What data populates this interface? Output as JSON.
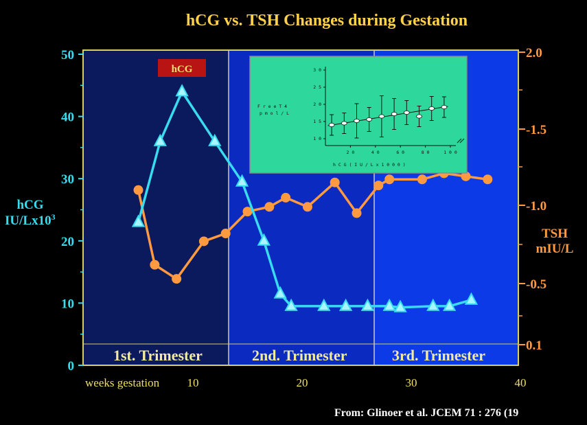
{
  "chart_data": {
    "type": "line",
    "title": "hCG vs. TSH Changes during Gestation",
    "xlabel": "weeks gestation",
    "xlim": [
      0,
      40
    ],
    "x_ticks": [
      "10",
      "20",
      "30",
      "40"
    ],
    "y_left": {
      "label_line1": "hCG",
      "label_line2": "IU/Lx10",
      "label_sup": "3",
      "lim": [
        0,
        50
      ],
      "ticks": [
        "0",
        "10",
        "20",
        "30",
        "40",
        "50"
      ]
    },
    "y_right": {
      "label_line1": "TSH",
      "label_line2": "mIU/L",
      "ticks": [
        "0.1",
        "-0.5",
        "-1.0",
        "-1.5",
        "2.0"
      ]
    },
    "series": [
      {
        "name": "hCG",
        "color": "#38dcf0",
        "marker": "triangle",
        "x": [
          5,
          7,
          9,
          12,
          14.5,
          16.5,
          18,
          19,
          22,
          24,
          26,
          28,
          29,
          32,
          33.5,
          35.5
        ],
        "y": [
          23,
          36,
          44,
          36,
          29.5,
          20,
          11.5,
          9.5,
          9.5,
          9.5,
          9.5,
          9.5,
          9.3,
          9.5,
          9.5,
          10.5
        ]
      },
      {
        "name": "TSH",
        "color": "#ff9a40",
        "marker": "circle",
        "x": [
          5,
          6.5,
          8.5,
          11,
          13,
          15,
          17,
          18.5,
          20.5,
          23,
          25,
          27,
          28,
          31,
          33,
          35,
          37
        ],
        "y": [
          1.1,
          0.62,
          0.53,
          0.77,
          0.82,
          0.96,
          0.99,
          1.05,
          0.99,
          1.15,
          0.95,
          1.13,
          1.17,
          1.17,
          1.21,
          1.19,
          1.17
        ]
      }
    ],
    "series_label": "hCG",
    "trimesters": [
      "1st. Trimester",
      "2nd. Trimester",
      "3rd. Trimester"
    ],
    "inset": {
      "ylabel_line1": "F r e e   T 4",
      "ylabel_line2": "p m o l / L",
      "xlabel": "h C G   ( I U / L x 1 0 0 0 )",
      "y_ticks": [
        "3 0",
        "2 5",
        "2 0",
        "1 5",
        "1 0"
      ],
      "x_ticks": [
        "2 0",
        "4 0",
        "6 0",
        "8 0",
        "1 0 0"
      ],
      "points_x": [
        5,
        15,
        25,
        35,
        45,
        55,
        65,
        75,
        85,
        95
      ],
      "points_y": [
        14,
        14.5,
        15.2,
        15.6,
        16.5,
        17.2,
        17.6,
        16.5,
        18.8,
        19.2
      ],
      "errors": [
        3,
        3,
        5,
        3.5,
        6,
        4.5,
        3.5,
        3,
        3.5,
        3
      ]
    },
    "source": "From: Glinoer et al. JCEM  71 : 276 (19"
  }
}
